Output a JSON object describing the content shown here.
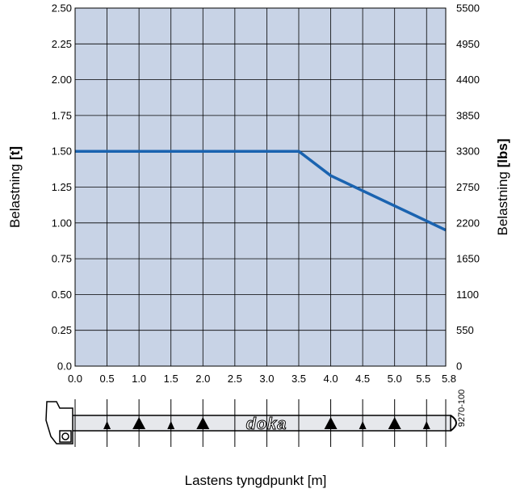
{
  "chart_data": {
    "type": "line",
    "x": [
      0.0,
      3.5,
      4.0,
      5.8
    ],
    "series": [
      {
        "values": [
          1.5,
          1.5,
          1.33,
          0.95
        ],
        "color": "#1a63b0"
      }
    ],
    "xlim": [
      0,
      5.8
    ],
    "ylim": [
      0,
      2.5
    ],
    "y2lim": [
      0,
      5500
    ],
    "x_ticks": [
      "0.0",
      "0.5",
      "1.0",
      "1.5",
      "2.0",
      "2.5",
      "3.0",
      "3.5",
      "4.0",
      "4.5",
      "5.0",
      "5.5",
      "5.8"
    ],
    "y_ticks": [
      "0.0",
      "0.25",
      "0.50",
      "0.75",
      "1.00",
      "1.25",
      "1.50",
      "1.75",
      "2.00",
      "2.25",
      "2.50"
    ],
    "y2_ticks": [
      "0",
      "550",
      "1100",
      "1650",
      "2200",
      "2750",
      "3300",
      "3850",
      "4400",
      "4950",
      "5500"
    ],
    "xlabel": "Lastens tyngdpunkt [m]",
    "ylabel": {
      "text": "Belastning ",
      "unit": "[t]"
    },
    "y2label": {
      "text": "Belastning ",
      "unit": "[lbs]"
    },
    "grid": true,
    "plot_background": "#c8d3e6"
  },
  "beam": {
    "brand": "doka",
    "code": "9270-100",
    "large_marker_positions": [
      1.0,
      2.0,
      4.0,
      5.0
    ],
    "small_marker_positions": [
      0.5,
      1.5,
      4.5,
      5.5
    ]
  }
}
